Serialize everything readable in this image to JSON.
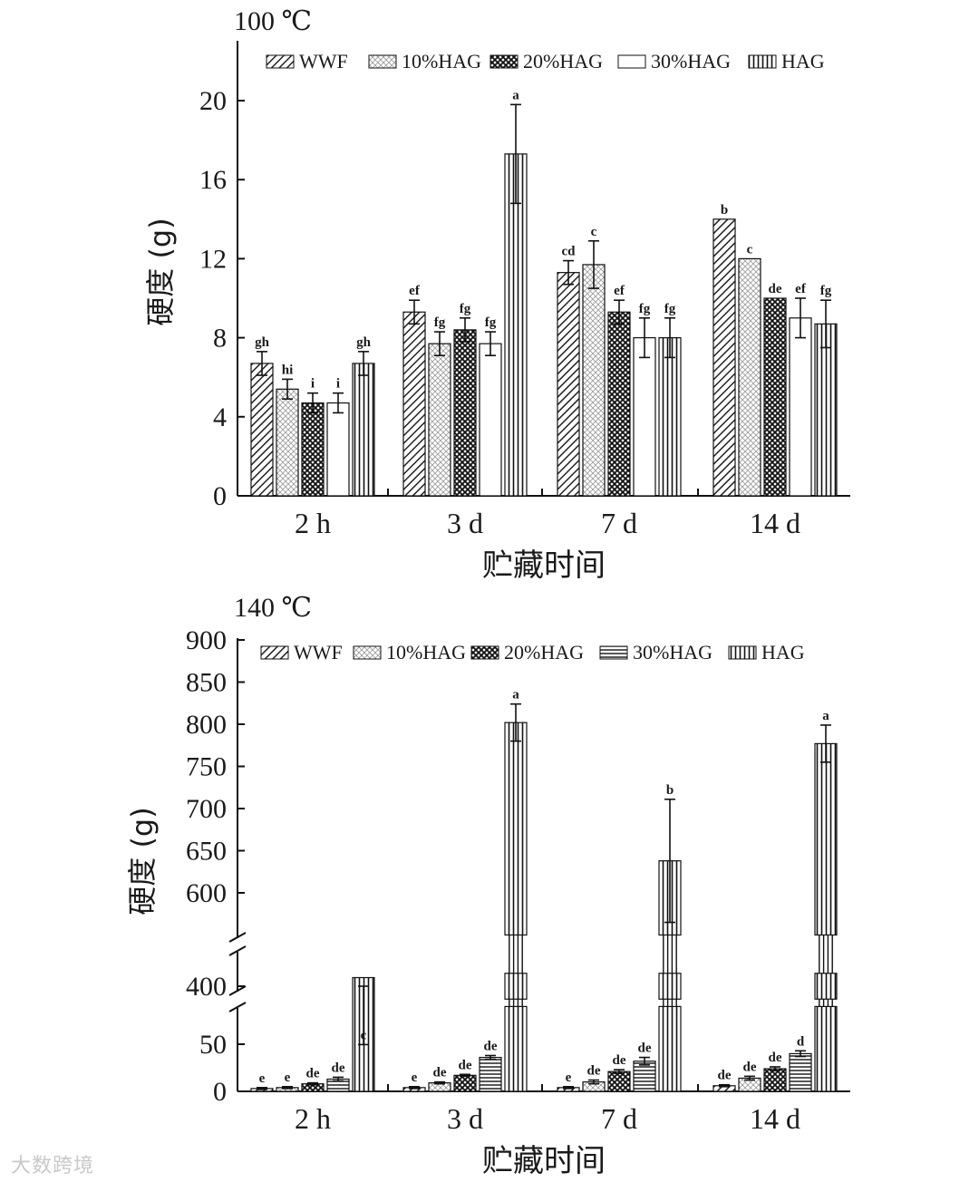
{
  "chart_data": [
    {
      "type": "bar",
      "title": "100 ℃",
      "categories": [
        "2 h",
        "3 d",
        "7 d",
        "14 d"
      ],
      "xlabel": "贮藏时间",
      "ylabel": "硬度 (g)",
      "ylim": [
        0,
        24
      ],
      "yticks": [
        "0",
        "4",
        "8",
        "12",
        "16",
        "20"
      ],
      "ytick_values": [
        0,
        4,
        8,
        12,
        16,
        20
      ],
      "grid": false,
      "legend_position": "top",
      "series": [
        {
          "name": "WWF",
          "pattern": "diag-dense",
          "values": [
            6.7,
            9.3,
            11.3,
            14.0
          ],
          "errors": [
            0.6,
            0.6,
            0.6,
            0.0
          ],
          "labels": [
            "gh",
            "ef",
            "cd",
            "b"
          ]
        },
        {
          "name": "10%HAG",
          "pattern": "dots",
          "values": [
            5.4,
            7.7,
            11.7,
            12.0
          ],
          "errors": [
            0.5,
            0.6,
            1.2,
            0.0
          ],
          "labels": [
            "hi",
            "fg",
            "c",
            "c"
          ]
        },
        {
          "name": "20%HAG",
          "pattern": "cross",
          "values": [
            4.7,
            8.4,
            9.3,
            10.0
          ],
          "errors": [
            0.5,
            0.6,
            0.6,
            0.0
          ],
          "labels": [
            "i",
            "fg",
            "ef",
            "de"
          ]
        },
        {
          "name": "30%HAG",
          "pattern": "empty",
          "values": [
            4.7,
            7.7,
            8.0,
            9.0
          ],
          "errors": [
            0.5,
            0.6,
            1.0,
            1.0
          ],
          "labels": [
            "i",
            "fg",
            "fg",
            "ef"
          ]
        },
        {
          "name": "HAG",
          "pattern": "vertical",
          "values": [
            6.7,
            17.3,
            8.0,
            8.7
          ],
          "errors": [
            0.6,
            2.5,
            1.0,
            1.2
          ],
          "labels": [
            "gh",
            "a",
            "fg",
            "fg"
          ]
        }
      ]
    },
    {
      "type": "bar",
      "title": "140 ℃",
      "categories": [
        "2 h",
        "3 d",
        "7 d",
        "14 d"
      ],
      "xlabel": "贮藏时间",
      "ylabel": "硬度 (g)",
      "broken_axis": true,
      "ylim_segments": [
        [
          0,
          90
        ],
        [
          385,
          415
        ],
        [
          550,
          900
        ]
      ],
      "yticks": [
        "0",
        "50",
        "400",
        "600",
        "650",
        "700",
        "750",
        "800",
        "850",
        "900"
      ],
      "ytick_values": [
        0,
        50,
        400,
        600,
        650,
        700,
        750,
        800,
        850,
        900
      ],
      "grid": false,
      "legend_position": "top",
      "series": [
        {
          "name": "WWF",
          "pattern": "diag-dense",
          "values": [
            3,
            4,
            4,
            6
          ],
          "errors": [
            1,
            1,
            1,
            1
          ],
          "labels": [
            "e",
            "e",
            "e",
            "de"
          ]
        },
        {
          "name": "10%HAG",
          "pattern": "dots",
          "values": [
            4,
            9,
            10,
            14
          ],
          "errors": [
            1,
            1,
            2,
            2
          ],
          "labels": [
            "e",
            "de",
            "de",
            "de"
          ]
        },
        {
          "name": "20%HAG",
          "pattern": "cross",
          "values": [
            8,
            17,
            21,
            24
          ],
          "errors": [
            1,
            1,
            2,
            2
          ],
          "labels": [
            "de",
            "de",
            "de",
            "de"
          ]
        },
        {
          "name": "30%HAG",
          "pattern": "horizontal",
          "values": [
            13,
            36,
            32,
            40
          ],
          "errors": [
            2,
            2,
            4,
            3
          ],
          "labels": [
            "de",
            "de",
            "de",
            "d"
          ]
        },
        {
          "name": "HAG",
          "pattern": "vertical",
          "values": [
            410,
            802,
            638,
            777
          ],
          "errors": [
            10,
            22,
            73,
            22
          ],
          "labels": [
            "c",
            "a",
            "b",
            "a"
          ]
        }
      ]
    }
  ],
  "watermark": "大数跨境"
}
